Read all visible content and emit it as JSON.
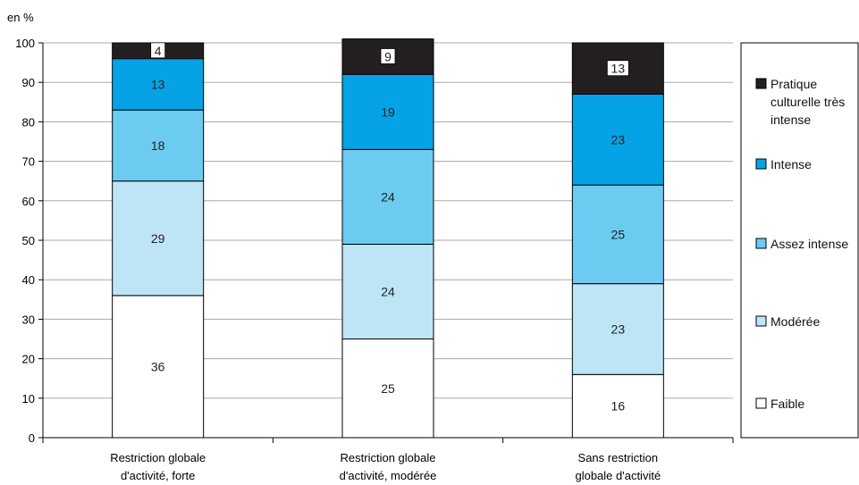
{
  "chart_data": {
    "type": "bar",
    "stacked": true,
    "y_unit_label": "en %",
    "xlabel": "",
    "ylabel": "",
    "ylim": [
      0,
      100
    ],
    "y_ticks": [
      0,
      10,
      20,
      30,
      40,
      50,
      60,
      70,
      80,
      90,
      100
    ],
    "categories": [
      [
        "Restriction globale",
        "d'activité, forte"
      ],
      [
        "Restriction globale",
        "d'activité, modérée"
      ],
      [
        "Sans restriction",
        "globale d'activité"
      ]
    ],
    "series": [
      {
        "name": "Faible",
        "values": [
          36,
          25,
          16
        ],
        "color": "#ffffff",
        "label_style": "plain"
      },
      {
        "name": "Modérée",
        "values": [
          29,
          24,
          23
        ],
        "color": "#bde5f6",
        "label_style": "plain"
      },
      {
        "name": "Assez intense",
        "values": [
          18,
          24,
          25
        ],
        "color": "#6ccbf0",
        "label_style": "plain"
      },
      {
        "name": "Intense",
        "values": [
          13,
          19,
          23
        ],
        "color": "#05a3e6",
        "label_style": "plain"
      },
      {
        "name": [
          "Pratique",
          "culturelle très",
          "intense"
        ],
        "values": [
          4,
          9,
          13
        ],
        "color": "#231f20",
        "label_style": "boxed"
      }
    ],
    "legend_order": [
      4,
      3,
      2,
      1,
      0
    ],
    "legend_position": "right",
    "grid": true
  }
}
